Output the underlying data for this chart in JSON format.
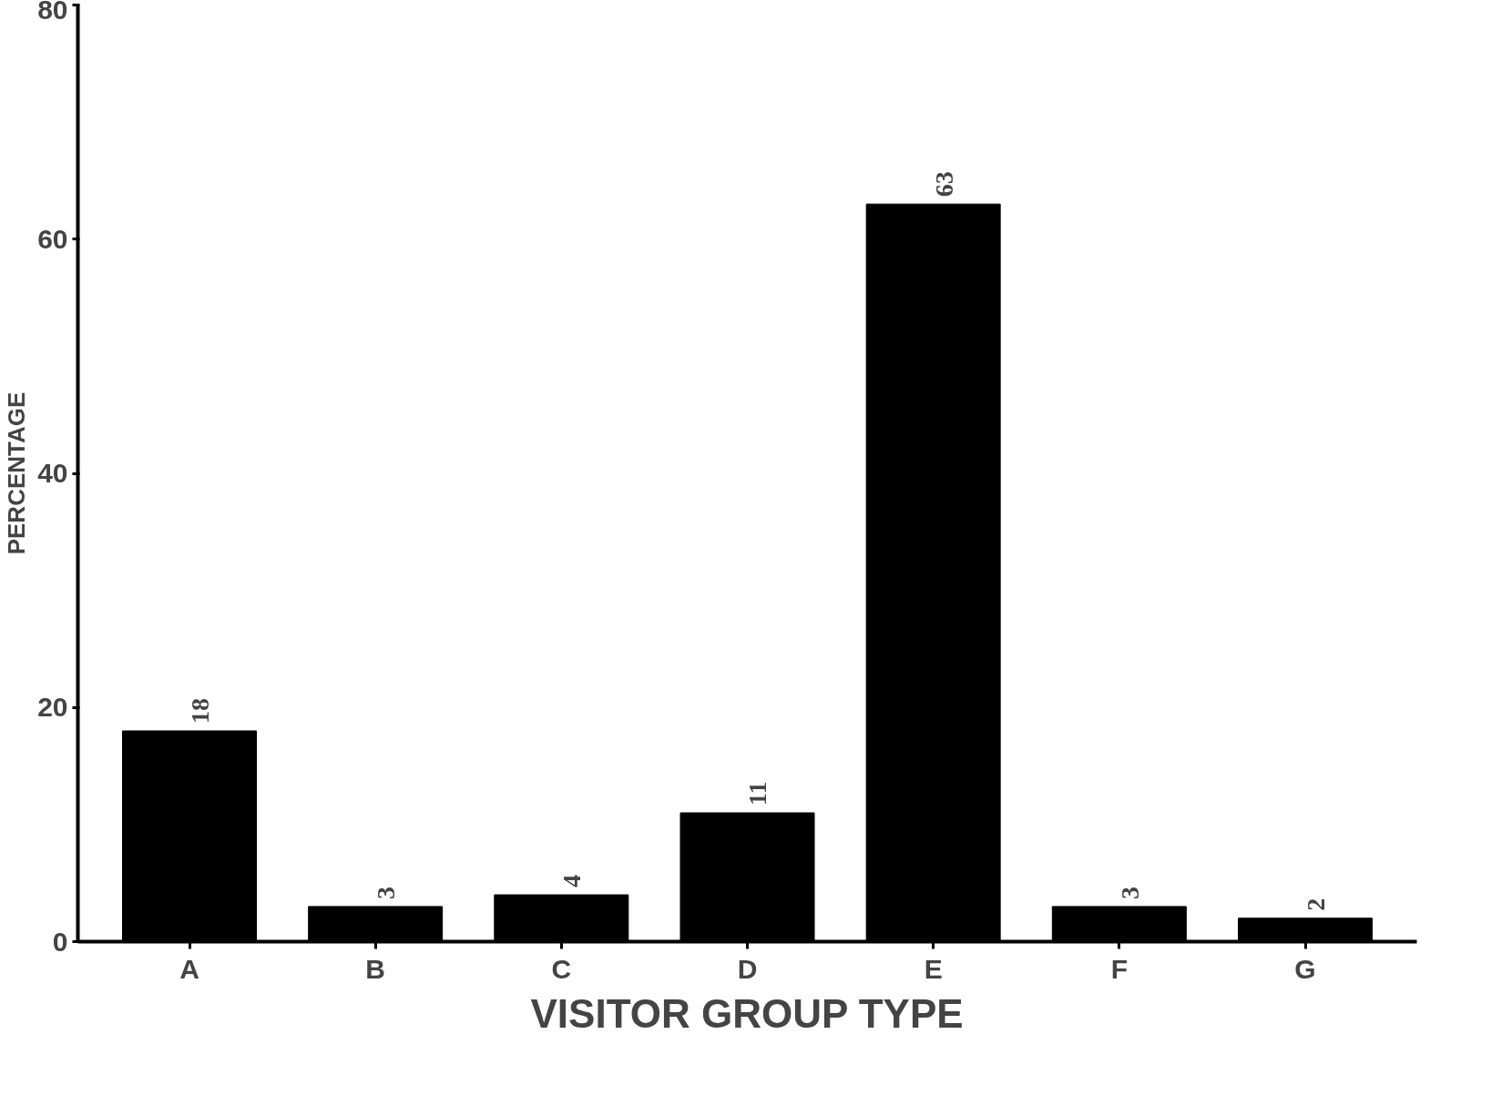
{
  "chart_data": {
    "type": "bar",
    "xlabel": "VISITOR GROUP TYPE",
    "ylabel": "PERCENTAGE",
    "categories": [
      "A",
      "B",
      "C",
      "D",
      "E",
      "F",
      "G"
    ],
    "values": [
      18,
      3,
      4,
      11,
      63,
      3,
      2
    ],
    "color": "#000000",
    "ylim": [
      0,
      80
    ],
    "yticks": [
      0,
      20,
      40,
      60,
      80
    ],
    "data_labels": true,
    "grid": false
  }
}
